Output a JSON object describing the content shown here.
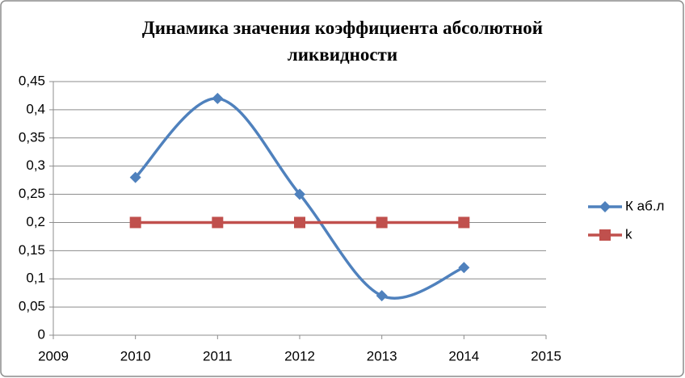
{
  "chart_data": {
    "type": "line",
    "title": "Динамика значения коэффициента абсолютной ликвидности",
    "x": [
      2010,
      2011,
      2012,
      2013,
      2014
    ],
    "series": [
      {
        "name": "К аб.л",
        "color": "#4f81bd",
        "marker": "diamond",
        "smooth": true,
        "values": [
          0.28,
          0.42,
          0.25,
          0.07,
          0.12
        ]
      },
      {
        "name": "k",
        "color": "#c0504d",
        "marker": "square",
        "smooth": false,
        "values": [
          0.2,
          0.2,
          0.2,
          0.2,
          0.2
        ]
      }
    ],
    "xlim": [
      2009,
      2015
    ],
    "xticks": [
      2009,
      2010,
      2011,
      2012,
      2013,
      2014,
      2015
    ],
    "ylim": [
      0,
      0.45
    ],
    "yticks": [
      0,
      {
        "value": 0.05,
        "label": "0,05"
      },
      {
        "value": 0.1,
        "label": "0,1"
      },
      {
        "value": 0.15,
        "label": "0,15"
      },
      {
        "value": 0.2,
        "label": "0,2"
      },
      {
        "value": 0.25,
        "label": "0,25"
      },
      {
        "value": 0.3,
        "label": "0,3"
      },
      {
        "value": 0.35,
        "label": "0,35"
      },
      {
        "value": 0.4,
        "label": "0,4"
      },
      {
        "value": 0.45,
        "label": "0,45"
      }
    ],
    "grid": true,
    "legend": "right"
  }
}
